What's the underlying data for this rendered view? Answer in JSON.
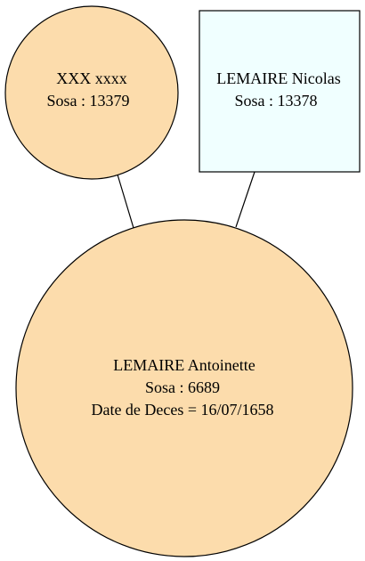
{
  "nodes": {
    "mother": {
      "name": "XXX xxxx",
      "sosa": "Sosa : 13379",
      "shape": "circle",
      "fill": "#fcdcac"
    },
    "father": {
      "name": "LEMAIRE Nicolas",
      "sosa": "Sosa : 13378",
      "shape": "box",
      "fill": "#f0ffff"
    },
    "person": {
      "name": "LEMAIRE Antoinette",
      "sosa": "Sosa : 6689",
      "death": "Date de Deces = 16/07/1658",
      "shape": "circle",
      "fill": "#fcdcac"
    }
  },
  "edges": [
    {
      "from": "mother",
      "to": "person"
    },
    {
      "from": "father",
      "to": "person"
    }
  ],
  "colors": {
    "stroke": "#000000",
    "female_fill": "#fcdcac",
    "male_fill": "#f0ffff"
  }
}
